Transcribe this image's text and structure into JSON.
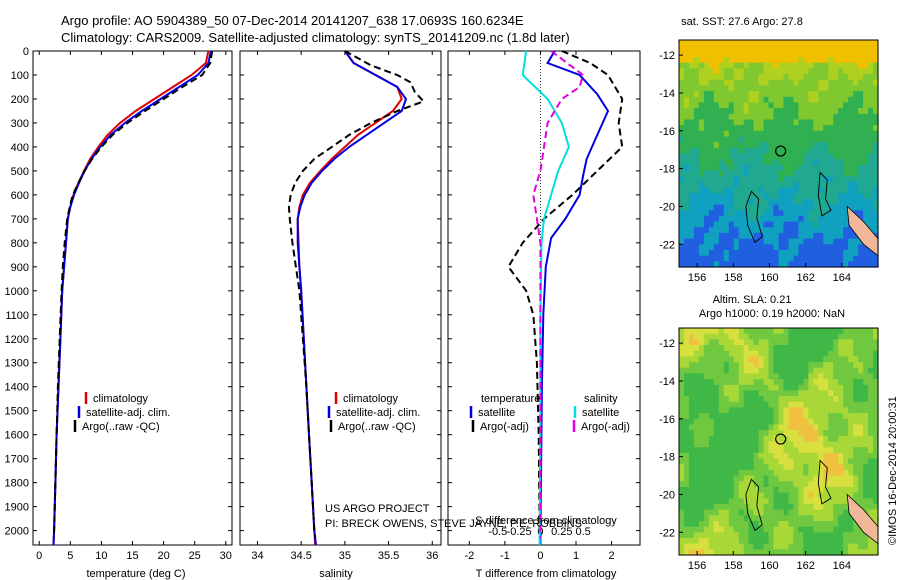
{
  "header": {
    "line1": "Argo profile: AO 5904389_50 07-Dec-2014 20141207_638 17.0693S 160.6234E",
    "line2": "Climatology: CARS2009. Satellite-adjusted climatology: synTS_20141209.nc (1.8d later)"
  },
  "colors": {
    "climatology": "#e00000",
    "satellite": "#0000e0",
    "argo": "#000000",
    "sat_salinity": "#00e0e0",
    "argo_salinity_adj": "#e000e0"
  },
  "chart_data": [
    {
      "id": "temperature",
      "type": "line",
      "xlabel": "temperature (deg C)",
      "xlim": [
        -1,
        31
      ],
      "xticks": [
        0,
        5,
        10,
        15,
        20,
        25,
        30
      ],
      "ylim": [
        2060,
        0
      ],
      "yticks": [
        0,
        100,
        200,
        300,
        400,
        500,
        600,
        700,
        800,
        900,
        1000,
        1100,
        1200,
        1300,
        1400,
        1500,
        1600,
        1700,
        1800,
        1900,
        2000
      ],
      "legend": [
        "climatology",
        "satellite-adj. clim.",
        "Argo(..raw -QC)"
      ],
      "series": [
        {
          "name": "climatology",
          "style": "solid",
          "color": "#e00000",
          "points": [
            [
              27.2,
              0
            ],
            [
              26.8,
              50
            ],
            [
              24.5,
              100
            ],
            [
              21.5,
              150
            ],
            [
              18.5,
              200
            ],
            [
              15.5,
              250
            ],
            [
              13.0,
              300
            ],
            [
              11.0,
              350
            ],
            [
              9.5,
              400
            ],
            [
              8.2,
              450
            ],
            [
              7.2,
              500
            ],
            [
              6.3,
              550
            ],
            [
              5.5,
              600
            ],
            [
              5.0,
              650
            ],
            [
              4.6,
              700
            ],
            [
              4.3,
              800
            ],
            [
              4.0,
              900
            ],
            [
              3.7,
              1000
            ],
            [
              3.4,
              1200
            ],
            [
              3.1,
              1400
            ],
            [
              2.8,
              1600
            ],
            [
              2.6,
              1800
            ],
            [
              2.4,
              2000
            ],
            [
              2.3,
              2060
            ]
          ]
        },
        {
          "name": "satellite",
          "style": "solid",
          "color": "#0000e0",
          "points": [
            [
              27.6,
              0
            ],
            [
              27.2,
              50
            ],
            [
              25.5,
              100
            ],
            [
              22.5,
              150
            ],
            [
              19.5,
              200
            ],
            [
              16.5,
              250
            ],
            [
              13.8,
              300
            ],
            [
              11.5,
              350
            ],
            [
              9.8,
              400
            ],
            [
              8.4,
              450
            ],
            [
              7.3,
              500
            ],
            [
              6.4,
              550
            ],
            [
              5.6,
              600
            ],
            [
              5.0,
              650
            ],
            [
              4.6,
              700
            ],
            [
              4.3,
              800
            ],
            [
              4.0,
              900
            ],
            [
              3.7,
              1000
            ],
            [
              3.4,
              1200
            ],
            [
              3.1,
              1400
            ],
            [
              2.8,
              1600
            ],
            [
              2.6,
              1800
            ],
            [
              2.4,
              2000
            ],
            [
              2.3,
              2060
            ]
          ]
        },
        {
          "name": "argo",
          "style": "dash",
          "color": "#000000",
          "points": [
            [
              27.8,
              0
            ],
            [
              27.5,
              50
            ],
            [
              26.2,
              100
            ],
            [
              23.0,
              150
            ],
            [
              20.0,
              200
            ],
            [
              17.0,
              250
            ],
            [
              14.2,
              300
            ],
            [
              11.8,
              350
            ],
            [
              10.0,
              400
            ],
            [
              8.5,
              450
            ],
            [
              7.3,
              500
            ],
            [
              6.3,
              550
            ],
            [
              5.4,
              600
            ],
            [
              4.9,
              650
            ],
            [
              4.5,
              700
            ],
            [
              4.1,
              800
            ],
            [
              3.8,
              900
            ],
            [
              3.6,
              1000
            ],
            [
              3.3,
              1200
            ],
            [
              3.0,
              1400
            ],
            [
              2.8,
              1600
            ],
            [
              2.6,
              1800
            ],
            [
              2.4,
              2000
            ],
            [
              2.3,
              2030
            ]
          ]
        }
      ]
    },
    {
      "id": "salinity",
      "type": "line",
      "xlabel": "salinity",
      "xlim": [
        33.8,
        36.1
      ],
      "xticks": [
        34,
        34.5,
        35,
        35.5,
        36
      ],
      "ylim": [
        2060,
        0
      ],
      "legend": [
        "climatology",
        "satellite-adj. clim.",
        "Argo(..raw -QC)"
      ],
      "series": [
        {
          "name": "climatology",
          "style": "solid",
          "color": "#e00000",
          "points": [
            [
              35.0,
              0
            ],
            [
              35.1,
              50
            ],
            [
              35.35,
              100
            ],
            [
              35.6,
              150
            ],
            [
              35.65,
              200
            ],
            [
              35.55,
              250
            ],
            [
              35.35,
              300
            ],
            [
              35.15,
              350
            ],
            [
              35.0,
              400
            ],
            [
              34.85,
              450
            ],
            [
              34.72,
              500
            ],
            [
              34.6,
              550
            ],
            [
              34.52,
              600
            ],
            [
              34.48,
              650
            ],
            [
              34.46,
              700
            ],
            [
              34.47,
              800
            ],
            [
              34.48,
              900
            ],
            [
              34.5,
              1000
            ],
            [
              34.53,
              1200
            ],
            [
              34.56,
              1400
            ],
            [
              34.59,
              1600
            ],
            [
              34.62,
              1800
            ],
            [
              34.65,
              2000
            ],
            [
              34.66,
              2060
            ]
          ]
        },
        {
          "name": "satellite",
          "style": "solid",
          "color": "#0000e0",
          "points": [
            [
              35.0,
              0
            ],
            [
              35.1,
              50
            ],
            [
              35.35,
              100
            ],
            [
              35.6,
              150
            ],
            [
              35.7,
              200
            ],
            [
              35.65,
              250
            ],
            [
              35.45,
              300
            ],
            [
              35.25,
              350
            ],
            [
              35.05,
              400
            ],
            [
              34.88,
              450
            ],
            [
              34.74,
              500
            ],
            [
              34.62,
              550
            ],
            [
              34.54,
              600
            ],
            [
              34.49,
              650
            ],
            [
              34.46,
              700
            ],
            [
              34.46,
              800
            ],
            [
              34.48,
              900
            ],
            [
              34.5,
              1000
            ],
            [
              34.53,
              1200
            ],
            [
              34.56,
              1400
            ],
            [
              34.59,
              1600
            ],
            [
              34.62,
              1800
            ],
            [
              34.65,
              2000
            ],
            [
              34.67,
              2060
            ]
          ]
        },
        {
          "name": "argo",
          "style": "dash",
          "color": "#000000",
          "points": [
            [
              35.0,
              0
            ],
            [
              35.3,
              60
            ],
            [
              35.6,
              100
            ],
            [
              35.75,
              130
            ],
            [
              35.8,
              170
            ],
            [
              35.9,
              210
            ],
            [
              35.6,
              250
            ],
            [
              35.3,
              300
            ],
            [
              35.05,
              350
            ],
            [
              34.85,
              400
            ],
            [
              34.65,
              450
            ],
            [
              34.52,
              500
            ],
            [
              34.43,
              550
            ],
            [
              34.38,
              600
            ],
            [
              34.36,
              650
            ],
            [
              34.37,
              700
            ],
            [
              34.4,
              800
            ],
            [
              34.44,
              900
            ],
            [
              34.48,
              1000
            ],
            [
              34.52,
              1200
            ],
            [
              34.56,
              1400
            ],
            [
              34.59,
              1600
            ],
            [
              34.62,
              1800
            ],
            [
              34.65,
              2000
            ],
            [
              34.66,
              2030
            ]
          ]
        }
      ]
    },
    {
      "id": "difference",
      "type": "line",
      "xlabel": "T difference from climatology",
      "xlabel2": "S difference from climatology",
      "xlim": [
        -2.6,
        2.8
      ],
      "xticks": [
        -2,
        -1,
        0,
        1,
        2
      ],
      "xticks2_values": [
        -0.5,
        -0.25,
        0,
        0.25,
        0.5
      ],
      "xticks2_labels": [
        "-0.5",
        "-0.25",
        "0",
        "0.25",
        "0.5"
      ],
      "ylim": [
        2060,
        0
      ],
      "legend": {
        "temperature_header": "temperature",
        "salinity_header": "salinity",
        "satellite": "satellite",
        "argo": "Argo(-adj)"
      },
      "series": [
        {
          "name": "T satellite",
          "style": "solid",
          "color": "#0000e0",
          "points": [
            [
              0.4,
              0
            ],
            [
              0.2,
              50
            ],
            [
              1.1,
              100
            ],
            [
              1.6,
              180
            ],
            [
              1.9,
              250
            ],
            [
              1.6,
              350
            ],
            [
              1.3,
              450
            ],
            [
              1.2,
              520
            ],
            [
              1.1,
              600
            ],
            [
              0.7,
              700
            ],
            [
              0.3,
              780
            ],
            [
              0.15,
              900
            ],
            [
              0.08,
              1100
            ],
            [
              0.04,
              1400
            ],
            [
              0.02,
              1700
            ],
            [
              0.0,
              2060
            ]
          ]
        },
        {
          "name": "T argo",
          "style": "dash",
          "color": "#000000",
          "points": [
            [
              0.6,
              0
            ],
            [
              1.4,
              50
            ],
            [
              1.9,
              100
            ],
            [
              2.3,
              200
            ],
            [
              2.2,
              300
            ],
            [
              2.3,
              400
            ],
            [
              1.6,
              500
            ],
            [
              0.9,
              600
            ],
            [
              0.1,
              700
            ],
            [
              -0.5,
              800
            ],
            [
              -0.9,
              900
            ],
            [
              -0.4,
              1000
            ],
            [
              -0.2,
              1100
            ],
            [
              -0.1,
              1300
            ],
            [
              -0.05,
              1600
            ],
            [
              -0.02,
              2030
            ]
          ]
        },
        {
          "name": "S satellite",
          "style": "solid",
          "color": "#00e0e0",
          "points": [
            [
              -0.4,
              0
            ],
            [
              -0.5,
              100
            ],
            [
              0.2,
              200
            ],
            [
              0.6,
              300
            ],
            [
              0.8,
              400
            ],
            [
              0.5,
              500
            ],
            [
              0.3,
              600
            ],
            [
              0.1,
              700
            ],
            [
              0.03,
              800
            ],
            [
              0.0,
              1100
            ],
            [
              0.0,
              1500
            ],
            [
              -0.02,
              2060
            ]
          ]
        },
        {
          "name": "S argo",
          "style": "dash",
          "color": "#e000e0",
          "points": [
            [
              0.3,
              0
            ],
            [
              1.2,
              100
            ],
            [
              1.1,
              150
            ],
            [
              0.6,
              200
            ],
            [
              0.2,
              300
            ],
            [
              0.1,
              400
            ],
            [
              0.0,
              500
            ],
            [
              -0.2,
              600
            ],
            [
              -0.1,
              700
            ],
            [
              0.0,
              800
            ],
            [
              0.0,
              1000
            ],
            [
              0.0,
              1500
            ],
            [
              0.0,
              2030
            ]
          ]
        }
      ]
    },
    {
      "id": "sst_map",
      "type": "heatmap",
      "title": "sat. SST: 27.6 Argo: 27.8",
      "xticks": [
        156,
        158,
        160,
        162,
        164
      ],
      "yticks": [
        -12,
        -14,
        -16,
        -18,
        -20,
        -22
      ],
      "xlim": [
        155,
        166
      ],
      "ylim": [
        -23.2,
        -11.2
      ],
      "marker": [
        160.62,
        -17.07
      ]
    },
    {
      "id": "sla_map",
      "type": "heatmap",
      "title_line1": "Altim. SLA: 0.21",
      "title_line2": "Argo h1000: 0.19 h2000: NaN",
      "xticks": [
        156,
        158,
        160,
        162,
        164
      ],
      "yticks": [
        -12,
        -14,
        -16,
        -18,
        -20,
        -22
      ],
      "xlim": [
        155,
        166
      ],
      "ylim": [
        -23.2,
        -11.2
      ],
      "marker": [
        160.62,
        -17.07
      ]
    }
  ],
  "footer": {
    "project_line1": "US ARGO PROJECT",
    "project_line2": "PI: BRECK OWENS, STEVE JAYNE, P.E. ROBBINS"
  },
  "credit": "©IMOS 16-Dec-2014 20:00:31"
}
